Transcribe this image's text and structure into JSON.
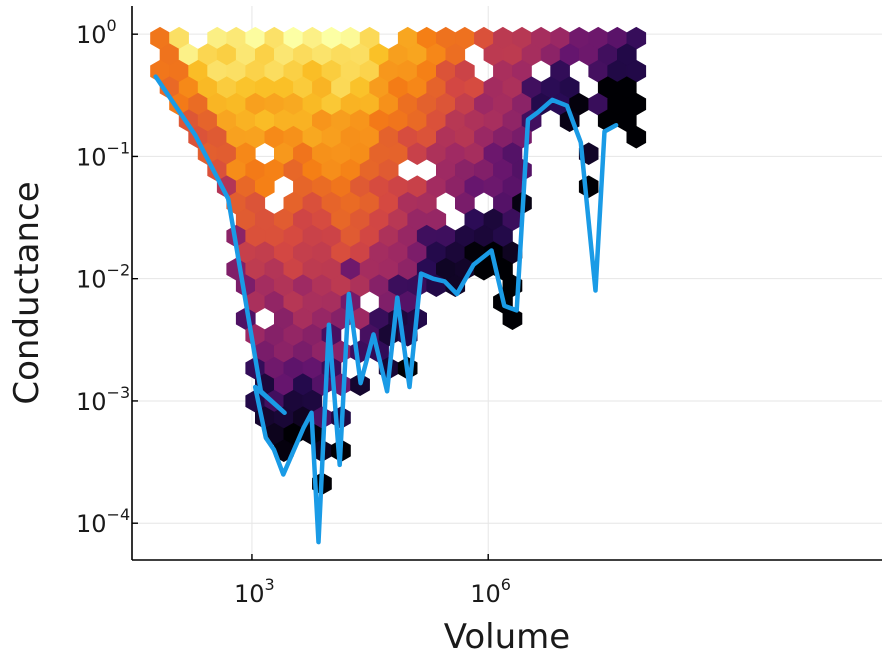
{
  "chart_data": {
    "type": "hexbin",
    "title": "",
    "xlabel": "Volume",
    "ylabel": "Conductance",
    "xscale": "log10",
    "yscale": "log10",
    "xlim": [
      30,
      100000000000.0
    ],
    "ylim": [
      5e-05,
      1.7
    ],
    "grid": true,
    "x_ticks": [
      {
        "base": "10",
        "exp": "3",
        "value": 1000
      },
      {
        "base": "10",
        "exp": "6",
        "value": 1000000
      }
    ],
    "y_ticks": [
      {
        "base": "10",
        "exp": "0",
        "value": 1
      },
      {
        "base": "10",
        "exp": "−1",
        "value": 0.1
      },
      {
        "base": "10",
        "exp": "−2",
        "value": 0.01
      },
      {
        "base": "10",
        "exp": "−3",
        "value": 0.001
      },
      {
        "base": "10",
        "exp": "−4",
        "value": 0.0001
      }
    ],
    "colormap": "inferno",
    "colors": {
      "line": "#1a9be6",
      "background": "#ffffff"
    },
    "series": [
      {
        "type": "line",
        "x": [
          60,
          190,
          500,
          1300,
          2600,
          1100,
          1500,
          1900,
          2500,
          4500,
          5700,
          7000,
          9500,
          13000,
          17000,
          24000,
          35000,
          52000,
          70000,
          100000,
          140000,
          200000,
          280000,
          400000,
          650000,
          1100000,
          1600000,
          2300000,
          3200000,
          4300000,
          6500000,
          10000000,
          15000000,
          23000000,
          30000000,
          42000000
        ],
        "y": [
          0.45,
          0.15,
          0.045,
          0.0012,
          0.0008,
          0.0013,
          0.0005,
          0.0004,
          0.00025,
          0.0006,
          0.0008,
          7e-05,
          0.0042,
          0.0003,
          0.0075,
          0.0014,
          0.0035,
          0.0012,
          0.007,
          0.0013,
          0.011,
          0.01,
          0.0095,
          0.0075,
          0.013,
          0.017,
          0.006,
          0.0055,
          0.2,
          0.23,
          0.29,
          0.26,
          0.13,
          0.008,
          0.16,
          0.18
        ]
      }
    ]
  }
}
